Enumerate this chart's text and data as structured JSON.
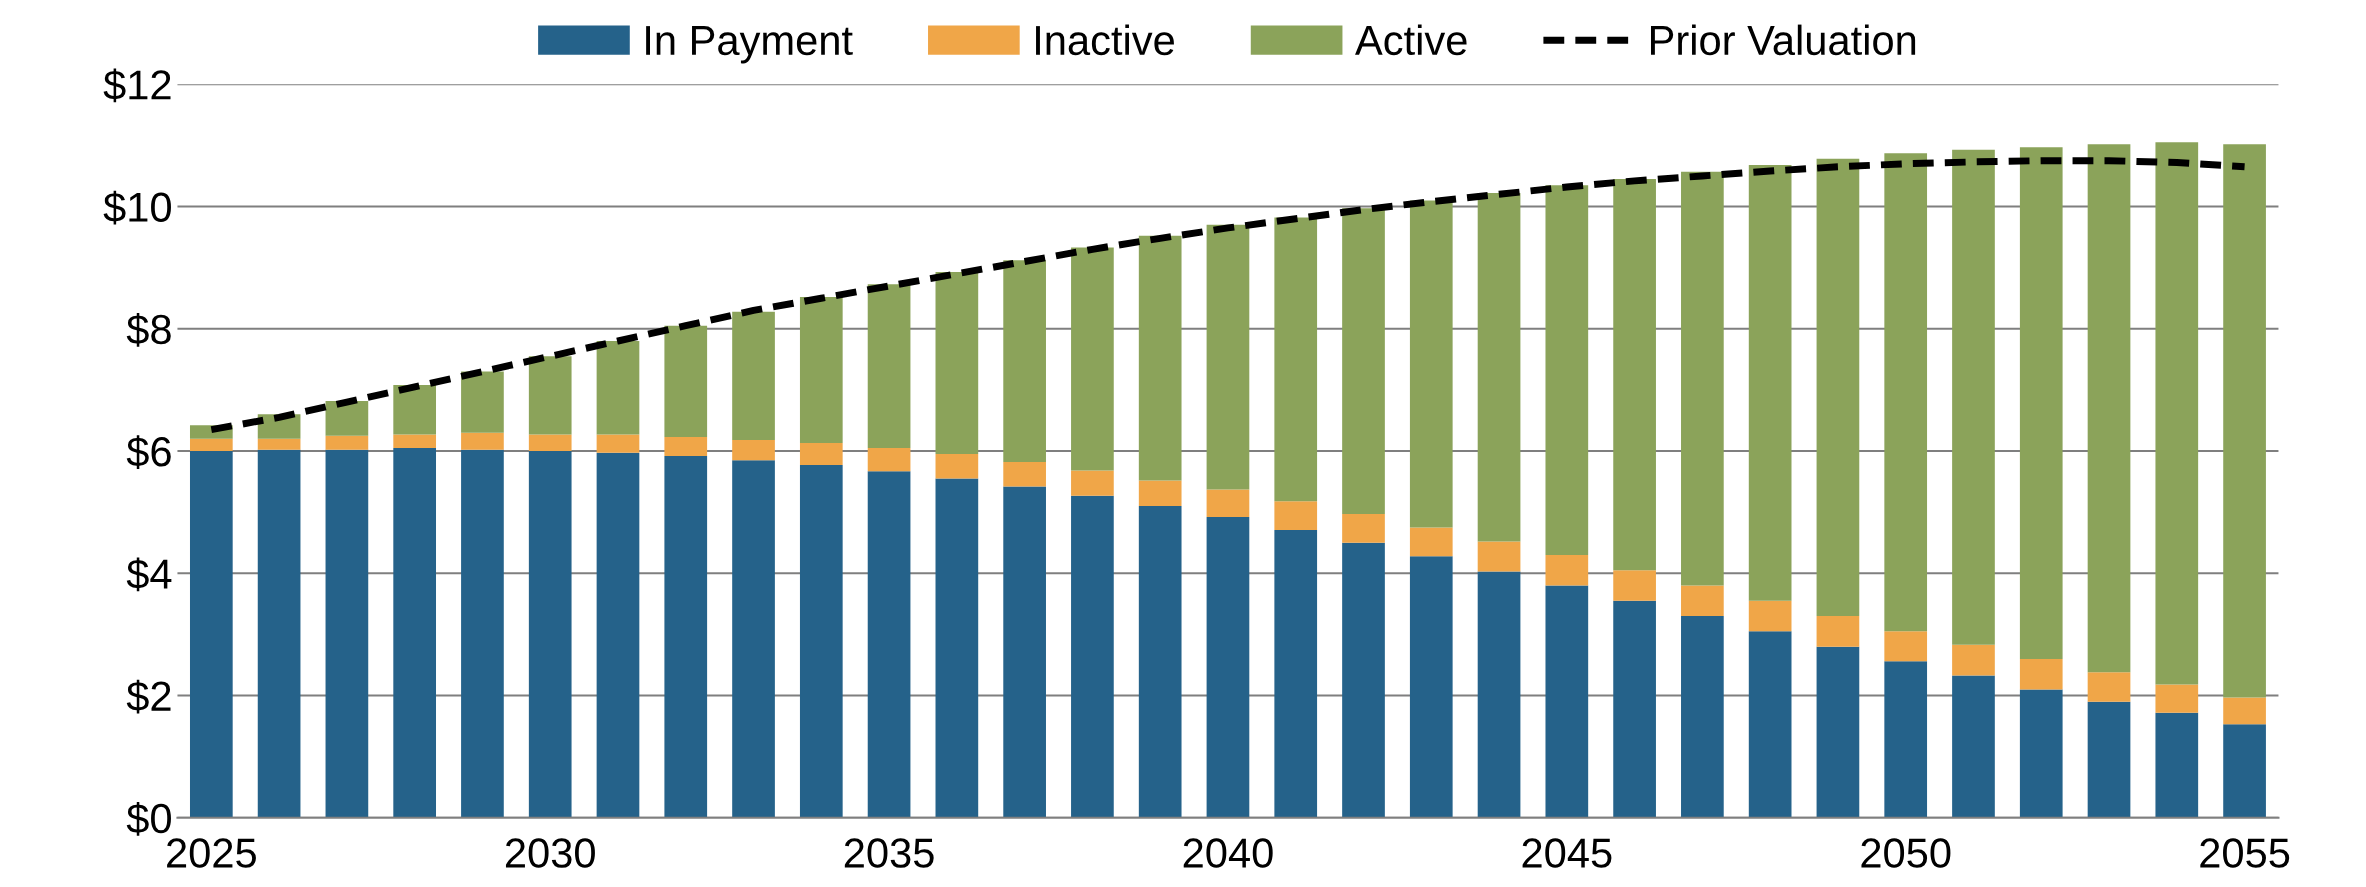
{
  "chart_data": {
    "type": "bar",
    "stacked": true,
    "x": [
      2025,
      2026,
      2027,
      2028,
      2029,
      2030,
      2031,
      2032,
      2033,
      2034,
      2035,
      2036,
      2037,
      2038,
      2039,
      2040,
      2041,
      2042,
      2043,
      2044,
      2045,
      2046,
      2047,
      2048,
      2049,
      2050,
      2051,
      2052,
      2053,
      2054,
      2055
    ],
    "series": [
      {
        "name": "In Payment",
        "color": "#25628a",
        "values": [
          6.0,
          6.02,
          6.02,
          6.05,
          6.02,
          6.0,
          5.97,
          5.92,
          5.85,
          5.77,
          5.67,
          5.55,
          5.42,
          5.27,
          5.1,
          4.92,
          4.71,
          4.5,
          4.28,
          4.03,
          3.8,
          3.55,
          3.3,
          3.05,
          2.8,
          2.56,
          2.33,
          2.1,
          1.9,
          1.72,
          1.53
        ]
      },
      {
        "name": "Inactive",
        "color": "#f0a648",
        "values": [
          0.2,
          0.18,
          0.23,
          0.22,
          0.28,
          0.27,
          0.3,
          0.31,
          0.33,
          0.36,
          0.38,
          0.4,
          0.4,
          0.41,
          0.42,
          0.45,
          0.47,
          0.47,
          0.47,
          0.49,
          0.5,
          0.5,
          0.5,
          0.5,
          0.5,
          0.49,
          0.5,
          0.5,
          0.48,
          0.46,
          0.44
        ]
      },
      {
        "name": "Active",
        "color": "#8ba35a",
        "values": [
          0.22,
          0.4,
          0.57,
          0.81,
          1.0,
          1.28,
          1.53,
          1.82,
          2.1,
          2.39,
          2.68,
          2.98,
          3.3,
          3.65,
          4.0,
          4.33,
          4.64,
          5.0,
          5.35,
          5.7,
          6.05,
          6.4,
          6.77,
          7.13,
          7.48,
          7.82,
          8.1,
          8.37,
          8.64,
          8.87,
          9.05
        ]
      },
      {
        "name": "Prior Valuation",
        "type": "line",
        "color": "#000000",
        "line_style": "dashed",
        "values": [
          6.35,
          6.55,
          6.8,
          7.05,
          7.3,
          7.55,
          7.8,
          8.05,
          8.3,
          8.5,
          8.7,
          8.9,
          9.1,
          9.3,
          9.48,
          9.65,
          9.8,
          9.95,
          10.08,
          10.2,
          10.32,
          10.42,
          10.5,
          10.58,
          10.65,
          10.7,
          10.73,
          10.75,
          10.75,
          10.72,
          10.65
        ]
      }
    ],
    "xlim": [
      2024.5,
      2055.5
    ],
    "xticks": [
      2025,
      2030,
      2035,
      2040,
      2045,
      2050,
      2055
    ],
    "ylim": [
      0,
      12
    ],
    "yticks": [
      {
        "value": 0,
        "label": "$0"
      },
      {
        "value": 2,
        "label": "$2"
      },
      {
        "value": 4,
        "label": "$4"
      },
      {
        "value": 6,
        "label": "$6"
      },
      {
        "value": 8,
        "label": "$8"
      },
      {
        "value": 10,
        "label": "$10"
      },
      {
        "value": 12,
        "label": "$12"
      }
    ],
    "grid": "y",
    "legend": "top"
  }
}
